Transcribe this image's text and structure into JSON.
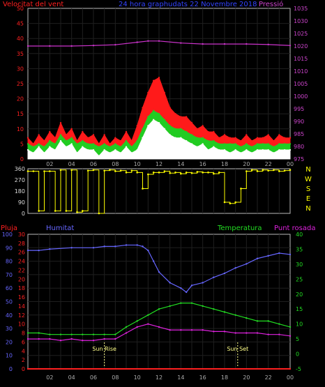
{
  "chart_data": [
    {
      "type": "line",
      "title": "24 hora graphudats  22 Novembre 2018",
      "left_axis_label": "Velocitat del vent",
      "right_axis_label": "Pressió",
      "x_ticks": [
        "02",
        "04",
        "06",
        "08",
        "10",
        "12",
        "14",
        "16",
        "18",
        "20",
        "22",
        "00"
      ],
      "y_left_ticks": [
        0,
        5,
        10,
        15,
        20,
        25,
        30,
        35,
        40,
        45,
        50
      ],
      "y_left_range": [
        0,
        50
      ],
      "y_right_ticks": [
        975,
        980,
        985,
        990,
        995,
        1000,
        1005,
        1010,
        1015,
        1020,
        1025,
        1030,
        1035
      ],
      "y_right_range": [
        975,
        1035
      ],
      "colors": {
        "gust": "#ff1a1a",
        "avg": "#22cc22",
        "speed": "#ffffff",
        "pressure": "#cc33cc",
        "grid": "#1f1f1f",
        "axis": "#bbbbbb",
        "left_label": "#ff2020",
        "right_label": "#cc44cc",
        "title": "#3344ff"
      },
      "series": [
        {
          "key": "pressure",
          "axis": "right",
          "x": [
            0,
            2,
            4,
            6,
            8,
            10,
            11,
            12,
            14,
            16,
            18,
            20,
            22,
            24
          ],
          "values": [
            1020.0,
            1020.0,
            1020.0,
            1020.2,
            1020.5,
            1021.5,
            1022.0,
            1022.0,
            1021.2,
            1020.8,
            1020.8,
            1020.8,
            1020.6,
            1020.2
          ]
        },
        {
          "key": "gust",
          "axis": "left",
          "x": [
            0,
            0.5,
            1,
            1.5,
            2,
            2.5,
            3,
            3.5,
            4,
            4.5,
            5,
            5.5,
            6,
            6.5,
            7,
            7.5,
            8,
            8.5,
            9,
            9.5,
            10,
            10.5,
            11,
            11.5,
            12,
            12.5,
            13,
            13.5,
            14,
            14.5,
            15,
            15.5,
            16,
            16.5,
            17,
            17.5,
            18,
            18.5,
            19,
            19.5,
            20,
            20.5,
            21,
            21.5,
            22,
            22.5,
            23,
            23.5,
            24
          ],
          "values": [
            7,
            5,
            8,
            6,
            9,
            7,
            12,
            8,
            10,
            6,
            9,
            7,
            8,
            5,
            8,
            5,
            7,
            6,
            9,
            6,
            11,
            17,
            22,
            26,
            27,
            22,
            17,
            15,
            14,
            14,
            12,
            10,
            11,
            9,
            9,
            7,
            8,
            7,
            7,
            6,
            8,
            6,
            7,
            7,
            8,
            6,
            8,
            7,
            7
          ]
        },
        {
          "key": "avg",
          "axis": "left",
          "x": [
            0,
            0.5,
            1,
            1.5,
            2,
            2.5,
            3,
            3.5,
            4,
            4.5,
            5,
            5.5,
            6,
            6.5,
            7,
            7.5,
            8,
            8.5,
            9,
            9.5,
            10,
            10.5,
            11,
            11.5,
            12,
            12.5,
            13,
            13.5,
            14,
            14.5,
            15,
            15.5,
            16,
            16.5,
            17,
            17.5,
            18,
            18.5,
            19,
            19.5,
            20,
            20.5,
            21,
            21.5,
            22,
            22.5,
            23,
            23.5,
            24
          ],
          "values": [
            5,
            4,
            5,
            4,
            6,
            5,
            8,
            6,
            7,
            5,
            6,
            5,
            5,
            4,
            5,
            4,
            5,
            4,
            6,
            4,
            6,
            10,
            14,
            16,
            15,
            13,
            11,
            10,
            10,
            9,
            8,
            7,
            7,
            6,
            6,
            5,
            5,
            5,
            5,
            4,
            5,
            4,
            5,
            5,
            5,
            4,
            5,
            5,
            5
          ]
        },
        {
          "key": "speed",
          "axis": "left",
          "x": [
            0,
            0.5,
            1,
            1.5,
            2,
            2.5,
            3,
            3.5,
            4,
            4.5,
            5,
            5.5,
            6,
            6.5,
            7,
            7.5,
            8,
            8.5,
            9,
            9.5,
            10,
            10.5,
            11,
            11.5,
            12,
            12.5,
            13,
            13.5,
            14,
            14.5,
            15,
            15.5,
            16,
            16.5,
            17,
            17.5,
            18,
            18.5,
            19,
            19.5,
            20,
            20.5,
            21,
            21.5,
            22,
            22.5,
            23,
            23.5,
            24
          ],
          "values": [
            3,
            2,
            4,
            2,
            4,
            3,
            6,
            4,
            5,
            2,
            4,
            3,
            3,
            1,
            3,
            2,
            3,
            2,
            4,
            2,
            3,
            7,
            11,
            13,
            12,
            10,
            8,
            7,
            7,
            6,
            5,
            4,
            5,
            3,
            4,
            3,
            3,
            2,
            3,
            2,
            3,
            2,
            3,
            3,
            3,
            2,
            3,
            3,
            3
          ]
        }
      ]
    },
    {
      "type": "line",
      "y_ticks": [
        0,
        90,
        180,
        270,
        360
      ],
      "y_range": [
        0,
        360
      ],
      "compass_labels": [
        "N",
        "W",
        "S",
        "E",
        "N"
      ],
      "colors": {
        "direction": "#ffff00",
        "compass": "#ffff00"
      },
      "series": [
        {
          "key": "direction",
          "x": [
            0,
            0.5,
            1,
            1.5,
            2,
            2.5,
            3,
            3.5,
            4,
            4.5,
            5,
            5.5,
            6,
            6.5,
            7,
            7.5,
            8,
            8.5,
            9,
            9.5,
            10,
            10.5,
            11,
            11.5,
            12,
            12.5,
            13,
            13.5,
            14,
            14.5,
            15,
            15.5,
            16,
            16.5,
            17,
            17.5,
            18,
            18.5,
            19,
            19.5,
            20,
            20.5,
            21,
            21.5,
            22,
            22.5,
            23,
            23.5,
            24
          ],
          "values": [
            340,
            340,
            20,
            340,
            340,
            20,
            350,
            20,
            350,
            10,
            20,
            345,
            350,
            0,
            345,
            350,
            340,
            345,
            330,
            345,
            330,
            200,
            315,
            330,
            330,
            340,
            325,
            330,
            320,
            330,
            325,
            335,
            330,
            330,
            320,
            330,
            90,
            80,
            90,
            200,
            340,
            350,
            340,
            350,
            345,
            350,
            340,
            345,
            350
          ]
        }
      ]
    },
    {
      "type": "line",
      "labels": {
        "rain": "Pluja",
        "humidity": "Humitat",
        "temperature": "Temperatura",
        "dewpoint": "Punt rosada"
      },
      "annotations": [
        {
          "text": "Sun Rise",
          "x": 7.0
        },
        {
          "text": "Sun Set",
          "x": 19.2
        }
      ],
      "y_humidity_ticks": [
        0,
        10,
        20,
        30,
        40,
        50,
        60,
        70,
        80,
        90,
        100
      ],
      "y_humidity_range": [
        0,
        100
      ],
      "y_rain_ticks": [
        0,
        2,
        4,
        6,
        8,
        10,
        12,
        14,
        16,
        18,
        20,
        22,
        24,
        26,
        28,
        30
      ],
      "y_rain_range": [
        0,
        30
      ],
      "y_temp_ticks": [
        -5,
        0,
        5,
        10,
        15,
        20,
        25,
        30,
        35,
        40
      ],
      "y_temp_range": [
        -5,
        40
      ],
      "colors": {
        "rain": "#ff2020",
        "humidity": "#6666ff",
        "temperature": "#22dd22",
        "dewpoint": "#dd22dd",
        "annotation": "#ffff88"
      },
      "series": [
        {
          "key": "humidity",
          "axis": "humidity",
          "x": [
            0,
            1,
            2,
            4,
            6,
            7,
            8,
            9,
            10,
            10.5,
            11,
            11.5,
            12,
            13,
            14,
            14.5,
            15,
            16,
            17,
            18,
            19,
            20,
            21,
            22,
            23,
            24
          ],
          "values": [
            88,
            88,
            89,
            90,
            90,
            91,
            91,
            92,
            92,
            91,
            88,
            80,
            72,
            64,
            60,
            57,
            62,
            64,
            68,
            71,
            75,
            78,
            82,
            84,
            86,
            85
          ]
        },
        {
          "key": "temperature",
          "axis": "temp",
          "x": [
            0,
            1,
            2,
            3,
            4,
            5,
            6,
            7,
            8,
            9,
            10,
            11,
            12,
            13,
            14,
            15,
            16,
            17,
            18,
            19,
            20,
            21,
            22,
            23,
            24
          ],
          "values": [
            7,
            7,
            6.5,
            6.5,
            6.5,
            6.5,
            6.5,
            6.5,
            6.5,
            9,
            11,
            13,
            15,
            16,
            17,
            17,
            16,
            15,
            14,
            13,
            12,
            11,
            11,
            10,
            9
          ]
        },
        {
          "key": "dewpoint",
          "axis": "temp",
          "x": [
            0,
            1,
            2,
            3,
            4,
            5,
            6,
            7,
            8,
            9,
            10,
            11,
            12,
            13,
            14,
            15,
            16,
            17,
            18,
            19,
            20,
            21,
            22,
            23,
            24
          ],
          "values": [
            5,
            5,
            5,
            4.5,
            5,
            4.5,
            4.5,
            5,
            5,
            7,
            9,
            10,
            9,
            8,
            8,
            8,
            8,
            7.5,
            7.5,
            7,
            7,
            7,
            6.5,
            6.5,
            6
          ]
        },
        {
          "key": "rain",
          "axis": "rain",
          "x": [
            0,
            24
          ],
          "values": [
            0,
            0
          ]
        }
      ]
    }
  ]
}
